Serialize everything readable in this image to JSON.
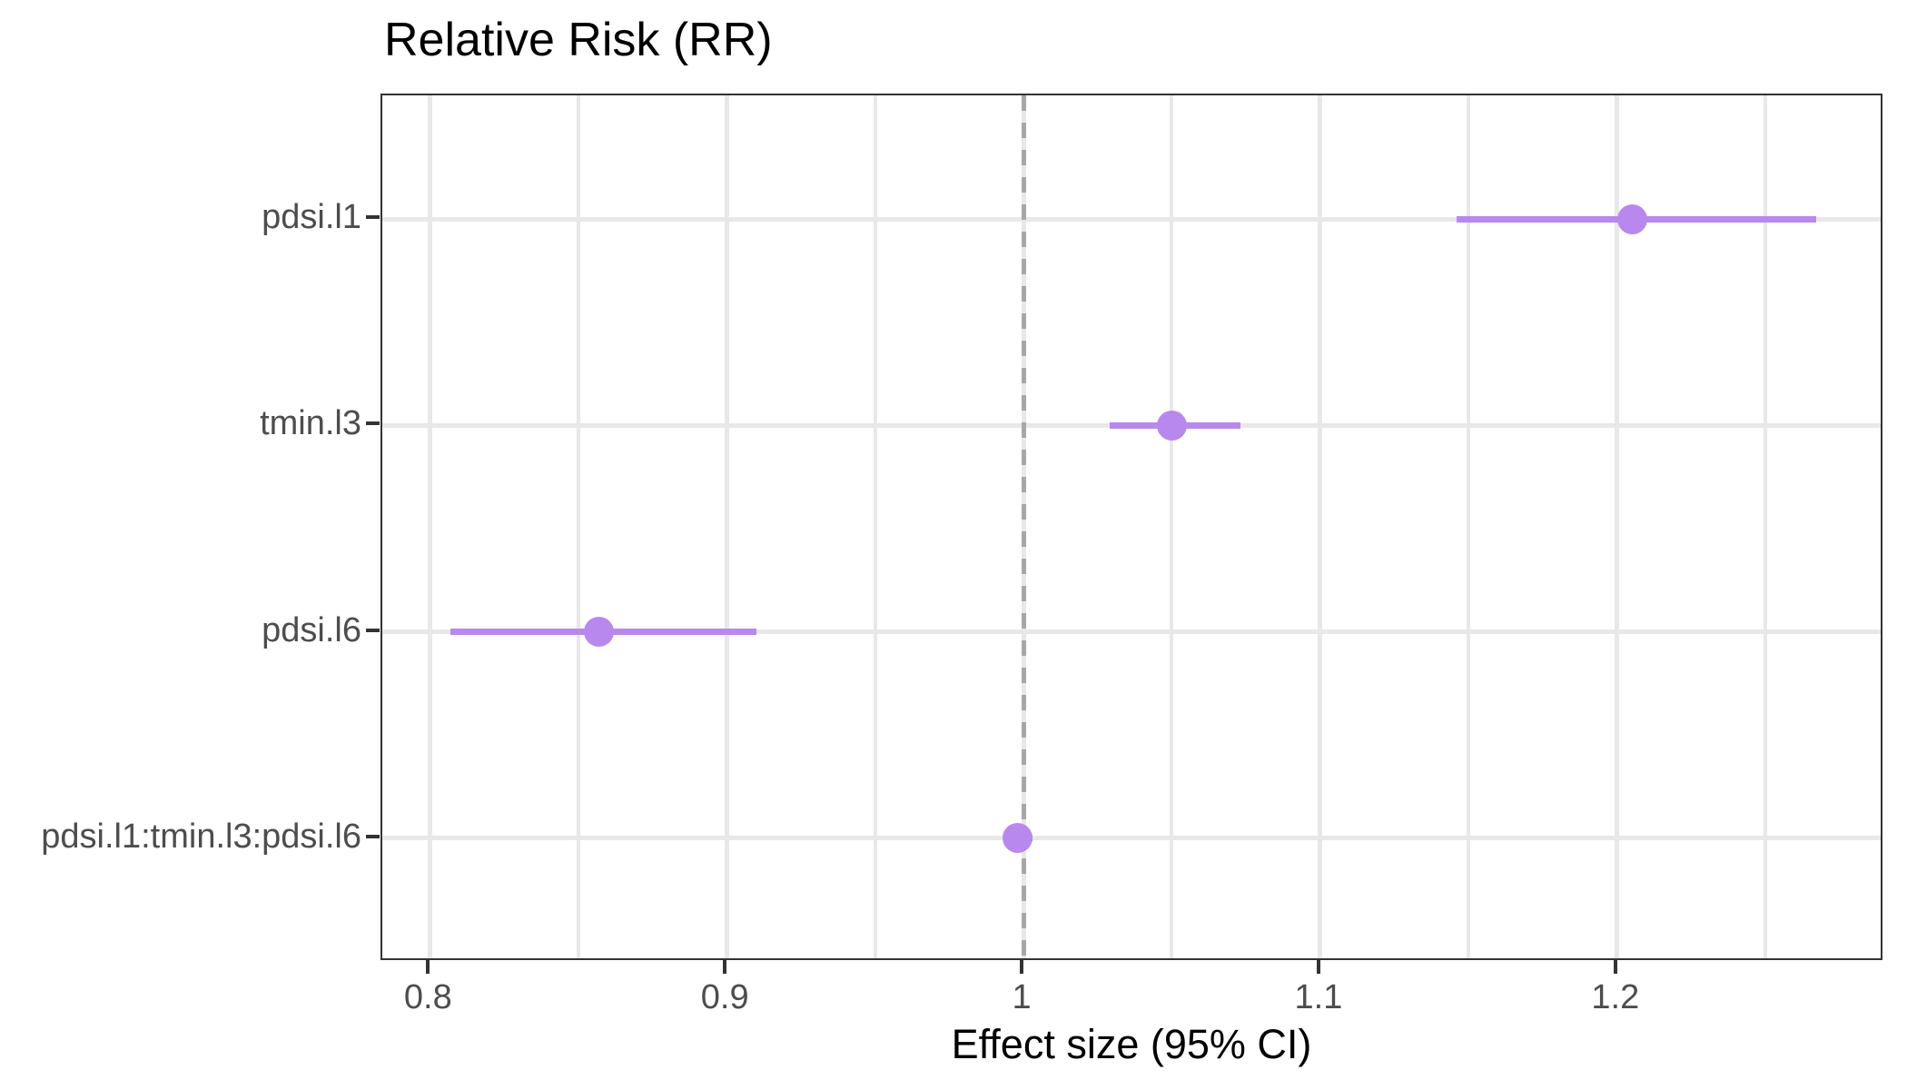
{
  "chart_data": {
    "type": "scatter",
    "subtype": "forest_plot_pointrange",
    "title": "Relative Risk (RR)",
    "xlabel": "Effect size (95% CI)",
    "ylabel": "",
    "categories": [
      "pdsi.l1",
      "tmin.l3",
      "pdsi.l6",
      "pdsi.l1:tmin.l3:pdsi.l6"
    ],
    "series": [
      {
        "name": "Relative Risk",
        "points": [
          {
            "label": "pdsi.l1",
            "estimate": 1.205,
            "ci_low": 1.146,
            "ci_high": 1.267
          },
          {
            "label": "tmin.l3",
            "estimate": 1.05,
            "ci_low": 1.029,
            "ci_high": 1.073
          },
          {
            "label": "pdsi.l6",
            "estimate": 0.857,
            "ci_low": 0.807,
            "ci_high": 0.91
          },
          {
            "label": "pdsi.l1:tmin.l3:pdsi.l6",
            "estimate": 0.998,
            "ci_low": 0.994,
            "ci_high": 1.003
          }
        ]
      }
    ],
    "x_tick_labels": [
      "0.8",
      "0.9",
      "1",
      "1.1",
      "1.2"
    ],
    "x_tick_values": [
      0.8,
      0.9,
      1.0,
      1.1,
      1.2
    ],
    "x_minor_grid_values": [
      0.85,
      0.95,
      1.05,
      1.15,
      1.25
    ],
    "xlim": [
      0.784,
      1.29
    ],
    "reference_line_x": 1.0,
    "grid": true,
    "legend_position": "none",
    "colors": {
      "point": "#B988EE",
      "ci_line": "#B988EE",
      "reference_line": "#A7A7A7",
      "gridline": "#E8E8E8",
      "panel_border": "#333333",
      "tick": "#333333",
      "tick_label": "#4D4D4D",
      "title": "#000000",
      "axis_title": "#000000",
      "background": "#FFFFFF"
    }
  }
}
